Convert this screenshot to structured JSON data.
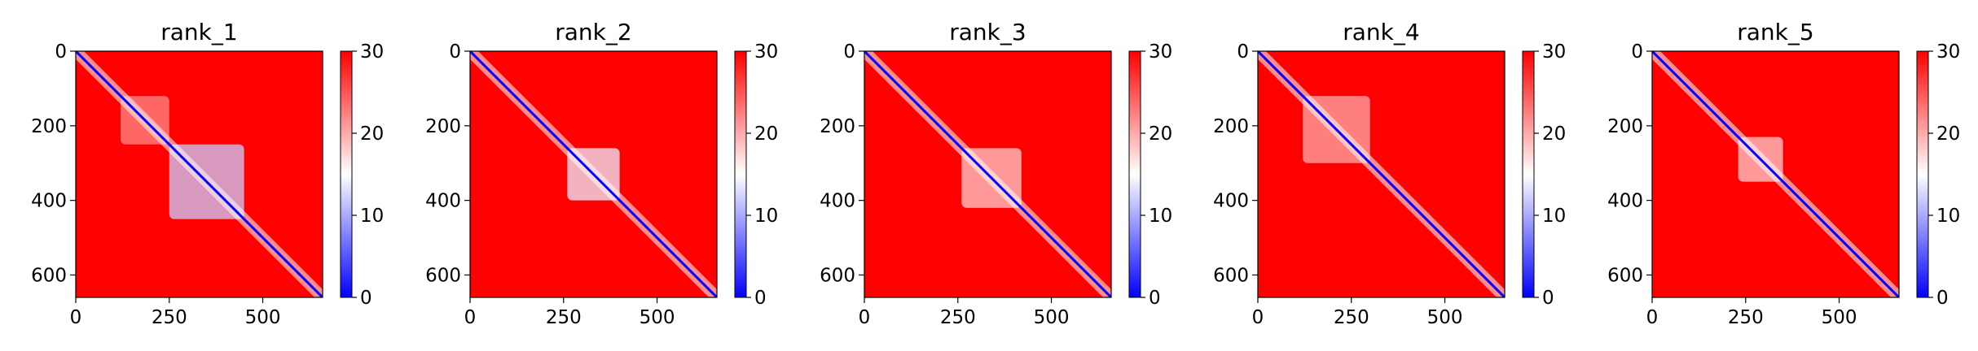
{
  "chart_data": [
    {
      "type": "heatmap",
      "title": "rank_1",
      "xticks": [
        0,
        250,
        500
      ],
      "yticks": [
        0,
        200,
        400,
        600
      ],
      "xlim": [
        0,
        660
      ],
      "ylim": [
        660,
        0
      ],
      "colorbar": {
        "ticks": [
          0,
          10,
          20,
          30
        ],
        "range": [
          0,
          30
        ],
        "colormap": "bwr"
      },
      "diagonal_value": 0,
      "background_value": 30,
      "low_error_regions": [
        {
          "x": [
            250,
            450
          ],
          "y": [
            250,
            450
          ],
          "value": 12
        },
        {
          "x": [
            120,
            250
          ],
          "y": [
            120,
            250
          ],
          "value": 22
        }
      ]
    },
    {
      "type": "heatmap",
      "title": "rank_2",
      "xticks": [
        0,
        250,
        500
      ],
      "yticks": [
        0,
        200,
        400,
        600
      ],
      "xlim": [
        0,
        660
      ],
      "ylim": [
        660,
        0
      ],
      "colorbar": {
        "ticks": [
          0,
          10,
          20,
          30
        ],
        "range": [
          0,
          30
        ],
        "colormap": "bwr"
      },
      "diagonal_value": 0,
      "background_value": 30,
      "low_error_regions": [
        {
          "x": [
            260,
            400
          ],
          "y": [
            260,
            400
          ],
          "value": 14
        }
      ]
    },
    {
      "type": "heatmap",
      "title": "rank_3",
      "xticks": [
        0,
        250,
        500
      ],
      "yticks": [
        0,
        200,
        400,
        600
      ],
      "xlim": [
        0,
        660
      ],
      "ylim": [
        660,
        0
      ],
      "colorbar": {
        "ticks": [
          0,
          10,
          20,
          30
        ],
        "range": [
          0,
          30
        ],
        "colormap": "bwr"
      },
      "diagonal_value": 0,
      "background_value": 30,
      "low_error_regions": [
        {
          "x": [
            260,
            420
          ],
          "y": [
            260,
            420
          ],
          "value": 18
        }
      ]
    },
    {
      "type": "heatmap",
      "title": "rank_4",
      "xticks": [
        0,
        250,
        500
      ],
      "yticks": [
        0,
        200,
        400,
        600
      ],
      "xlim": [
        0,
        660
      ],
      "ylim": [
        660,
        0
      ],
      "colorbar": {
        "ticks": [
          0,
          10,
          20,
          30
        ],
        "range": [
          0,
          30
        ],
        "colormap": "bwr"
      },
      "diagonal_value": 0,
      "background_value": 30,
      "low_error_regions": [
        {
          "x": [
            120,
            300
          ],
          "y": [
            120,
            300
          ],
          "value": 20
        }
      ]
    },
    {
      "type": "heatmap",
      "title": "rank_5",
      "xticks": [
        0,
        250,
        500
      ],
      "yticks": [
        0,
        200,
        400,
        600
      ],
      "xlim": [
        0,
        660
      ],
      "ylim": [
        660,
        0
      ],
      "colorbar": {
        "ticks": [
          0,
          10,
          20,
          30
        ],
        "range": [
          0,
          30
        ],
        "colormap": "bwr"
      },
      "diagonal_value": 0,
      "background_value": 30,
      "low_error_regions": [
        {
          "x": [
            230,
            350
          ],
          "y": [
            230,
            350
          ],
          "value": 18
        }
      ]
    }
  ]
}
